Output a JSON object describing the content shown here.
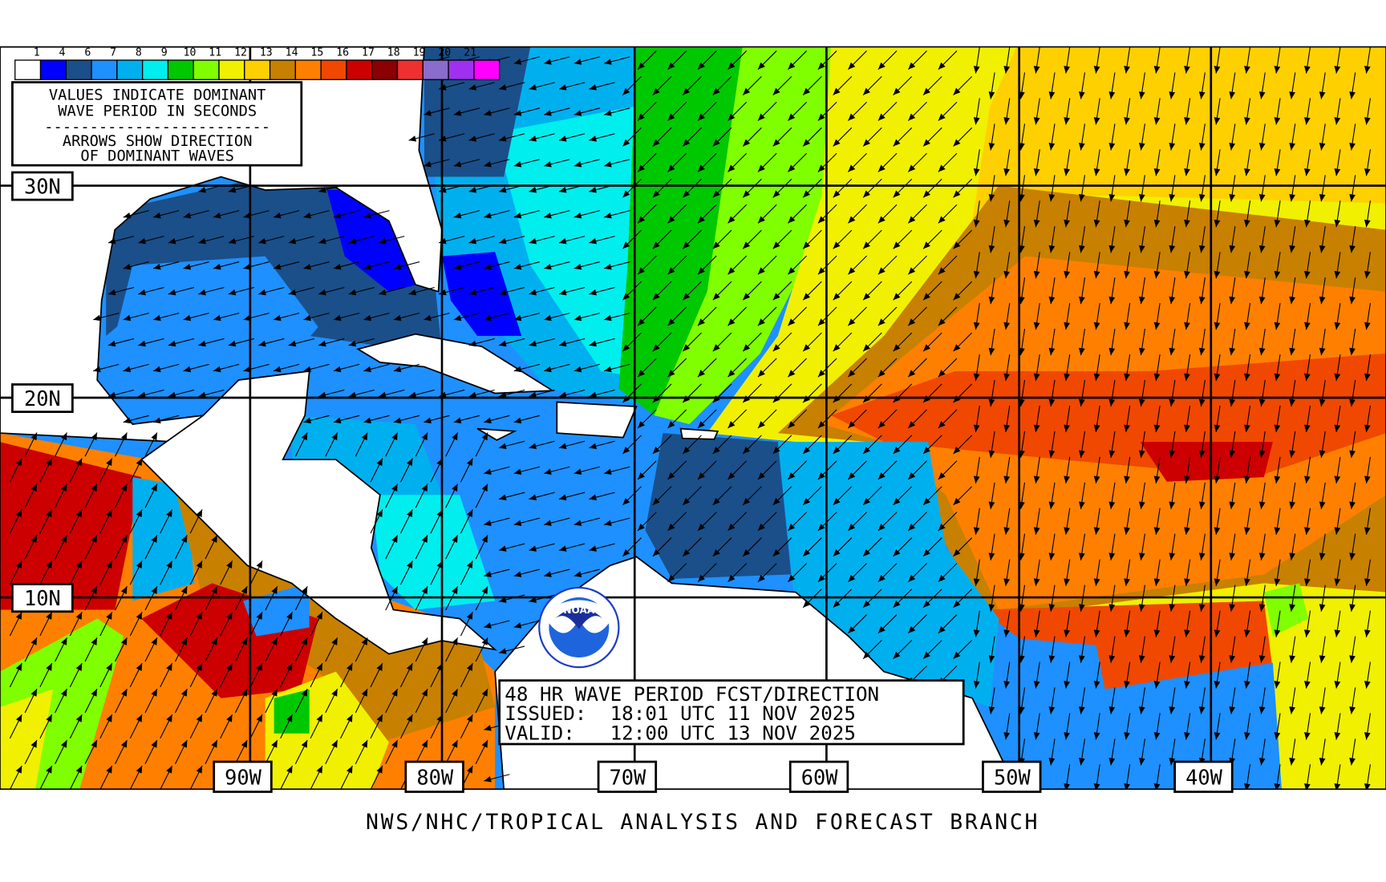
{
  "legend": {
    "labels": [
      "1",
      "4",
      "6",
      "7",
      "8",
      "9",
      "10",
      "11",
      "12",
      "13",
      "14",
      "15",
      "16",
      "17",
      "18",
      "19",
      "20",
      "21"
    ],
    "colors": [
      "#ffffff",
      "#0000ff",
      "#1a4f8a",
      "#1e90ff",
      "#00b0ee",
      "#00eeee",
      "#00c800",
      "#80ff00",
      "#f0f000",
      "#ffd000",
      "#c88000",
      "#ff8000",
      "#f04800",
      "#cc0000",
      "#8b0000",
      "#ee3030",
      "#8a6ccc",
      "#a030f0",
      "#ff00ff"
    ],
    "note_line1": "VALUES INDICATE DOMINANT",
    "note_line2": "WAVE PERIOD IN SECONDS",
    "note_divider": "-------------------------",
    "note_line3": "ARROWS SHOW DIRECTION",
    "note_line4": "OF DOMINANT WAVES"
  },
  "latitude_labels": [
    "30N",
    "20N",
    "10N"
  ],
  "longitude_labels": [
    "90W",
    "80W",
    "70W",
    "60W",
    "50W",
    "40W"
  ],
  "forecast_box": {
    "title": "48 HR WAVE PERIOD FCST/DIRECTION",
    "issued": "ISSUED:  18:01 UTC 11 NOV 2025",
    "valid": "VALID:   12:00 UTC 13 NOV 2025"
  },
  "logo": {
    "text": "NOAA",
    "ring_text": "NATIONAL OCEANIC AND ATMOSPHERIC ADMINISTRATION · U.S. DEPARTMENT OF COMMERCE"
  },
  "footer": "NWS/NHC/TROPICAL ANALYSIS AND FORECAST BRANCH"
}
